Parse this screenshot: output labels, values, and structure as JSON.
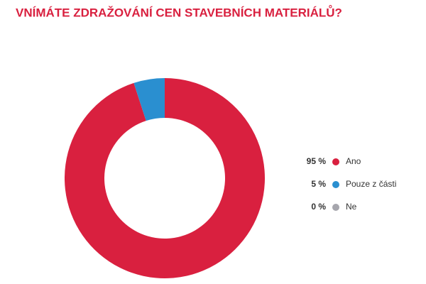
{
  "chart_data": {
    "type": "donut",
    "title": "VNÍMÁTE ZDRAŽOVÁNÍ CEN STAVEBNÍCH MATERIÁLŮ?",
    "categories": [
      "Ano",
      "Pouze z části",
      "Ne"
    ],
    "values": [
      95,
      5,
      0
    ],
    "value_labels": [
      "95 %",
      "5 %",
      "0 %"
    ],
    "colors": [
      "#d9203f",
      "#2a8fd0",
      "#a6a6ad"
    ]
  }
}
